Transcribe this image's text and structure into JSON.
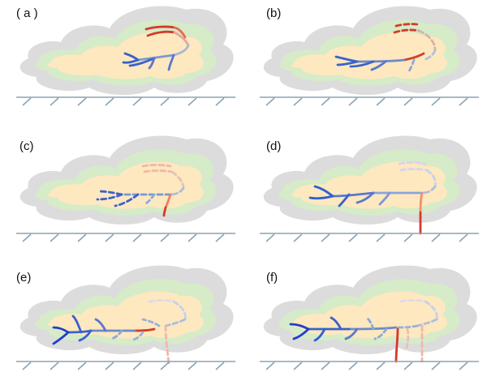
{
  "panels": [
    {
      "label": "( a )"
    },
    {
      "label": "(b)"
    },
    {
      "label": "(c)"
    },
    {
      "label": "(d)"
    },
    {
      "label": "(e)"
    },
    {
      "label": "(f)"
    }
  ],
  "colors": {
    "cloud_outer": "#dcdcdc",
    "cloud_mid": "#d6ebc8",
    "cloud_core": "#fde8bf",
    "ground": "#8aa3b4",
    "negative_channel": "#2f5fd0",
    "negative_faint": "#8aaad8",
    "positive_channel": "#d43a2a",
    "positive_faint": "#f0a090"
  }
}
